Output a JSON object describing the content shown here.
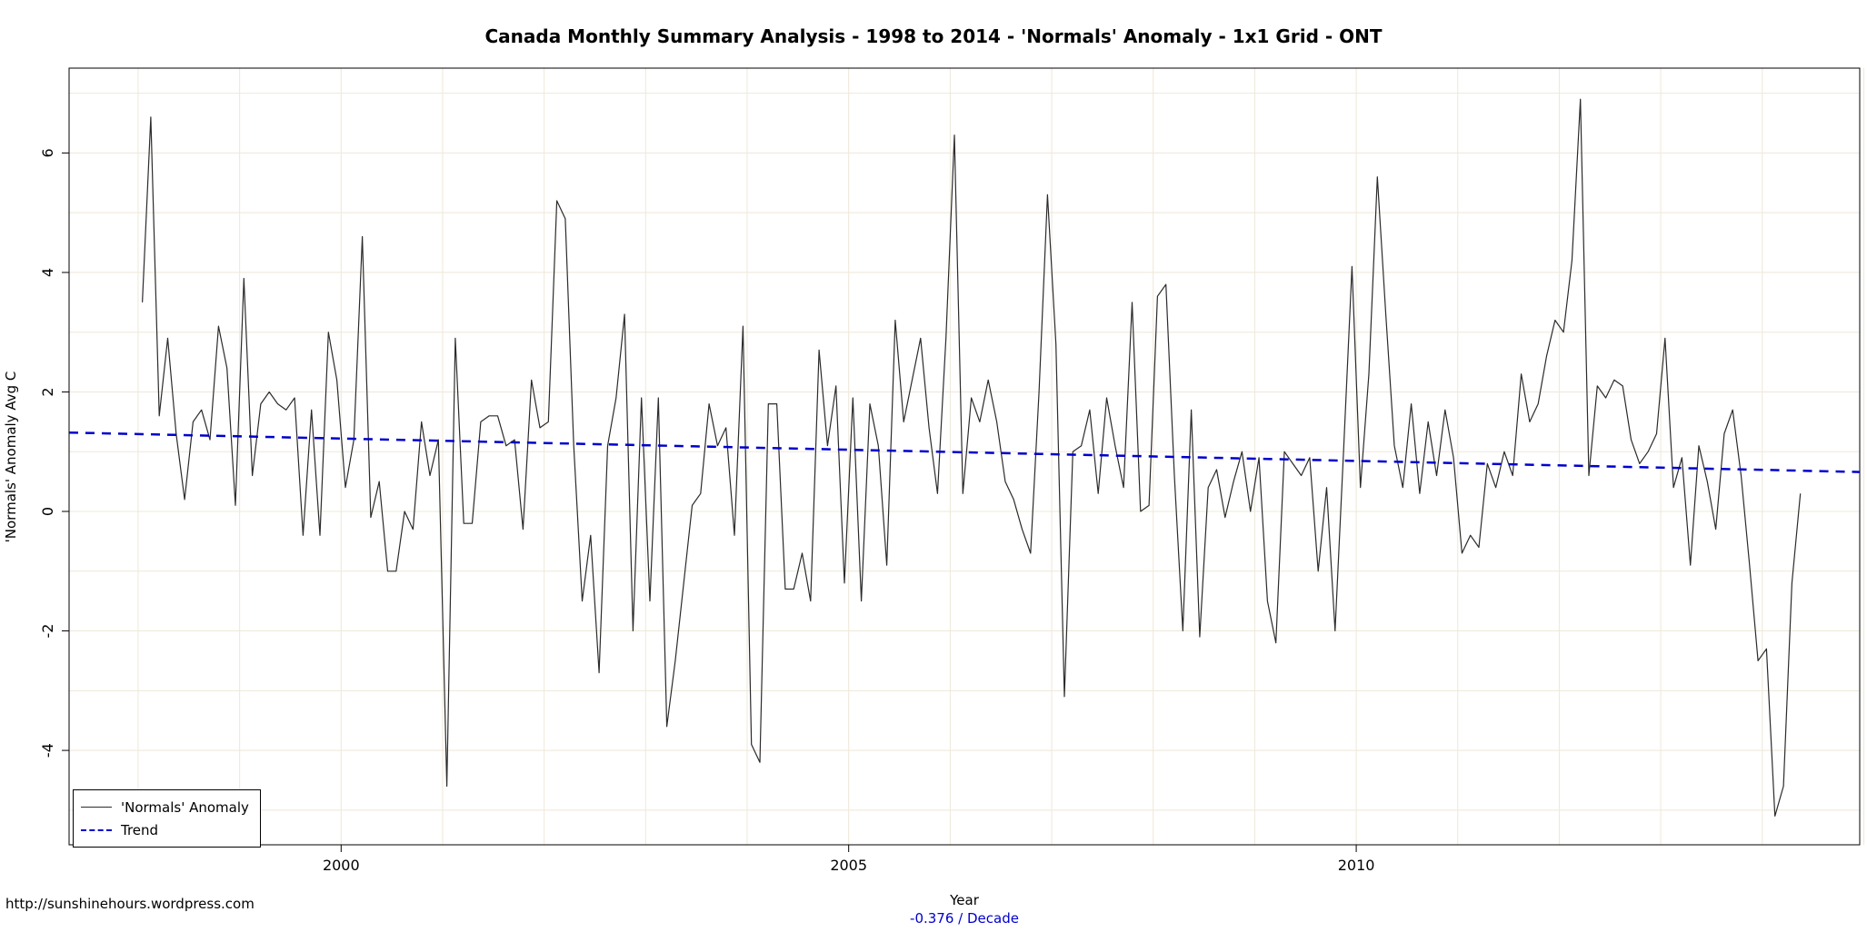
{
  "title": "Canada Monthly Summary Analysis - 1998 to 2014 - 'Normals' Anomaly - 1x1 Grid - ONT",
  "footer": {
    "url": "http://sunshinehours.wordpress.com",
    "xlabel": "Year",
    "trend_note": "-0.376  / Decade"
  },
  "chart_data": {
    "type": "line",
    "title": "Canada Monthly Summary Analysis - 1998 to 2014 - 'Normals' Anomaly - 1x1 Grid - ONT",
    "xlabel": "Year",
    "ylabel": "'Normals' Anomaly Avg C",
    "x_ticks": [
      2000,
      2005,
      2010
    ],
    "y_ticks": [
      -4,
      -2,
      0,
      2,
      4,
      6
    ],
    "xlim": [
      1997.32,
      2014.96
    ],
    "ylim": [
      -5.58,
      7.42
    ],
    "grid": {
      "x_from": 1998,
      "x_to": 2015,
      "y_from": -5,
      "y_to": 7
    },
    "legend": {
      "position": "bottom-left",
      "items": [
        {
          "label": "'Normals' Anomaly"
        },
        {
          "label": "Trend"
        }
      ]
    },
    "trend_slope_per_decade": -0.376,
    "colors": {
      "series": "#2b2b2b",
      "trend": "#0000cd",
      "grid": "#efe8d8",
      "box": "#000000"
    },
    "series": [
      {
        "name": "'Normals' Anomaly",
        "style": "solid",
        "start_year": 1998,
        "frequency": "monthly",
        "values": [
          3.5,
          6.6,
          1.6,
          2.9,
          1.3,
          0.2,
          1.5,
          1.7,
          1.2,
          3.1,
          2.4,
          0.1,
          3.9,
          0.6,
          1.8,
          2.0,
          1.8,
          1.7,
          1.9,
          -0.4,
          1.7,
          -0.4,
          3.0,
          2.2,
          0.4,
          1.2,
          4.6,
          -0.1,
          0.5,
          -1.0,
          -1.0,
          0.0,
          -0.3,
          1.5,
          0.6,
          1.2,
          -4.6,
          2.9,
          -0.2,
          -0.2,
          1.5,
          1.6,
          1.6,
          1.1,
          1.2,
          -0.3,
          2.2,
          1.4,
          1.5,
          5.2,
          4.9,
          1.1,
          -1.5,
          -0.4,
          -2.7,
          1.1,
          1.9,
          3.3,
          -2.0,
          1.9,
          -1.5,
          1.9,
          -3.6,
          -2.5,
          -1.2,
          0.1,
          0.3,
          1.8,
          1.1,
          1.4,
          -0.4,
          3.1,
          -3.9,
          -4.2,
          1.8,
          1.8,
          -1.3,
          -1.3,
          -0.7,
          -1.5,
          2.7,
          1.1,
          2.1,
          -1.2,
          1.9,
          -1.5,
          1.8,
          1.1,
          -0.9,
          3.2,
          1.5,
          2.2,
          2.9,
          1.4,
          0.3,
          2.9,
          6.3,
          0.3,
          1.9,
          1.5,
          2.2,
          1.5,
          0.5,
          0.2,
          -0.3,
          -0.7,
          2.0,
          5.3,
          2.8,
          -3.1,
          1.0,
          1.1,
          1.7,
          0.3,
          1.9,
          1.1,
          0.4,
          3.5,
          0.0,
          0.1,
          3.6,
          3.8,
          0.6,
          -2.0,
          1.7,
          -2.1,
          0.4,
          0.7,
          -0.1,
          0.5,
          1.0,
          0.0,
          0.9,
          -1.5,
          -2.2,
          1.0,
          0.8,
          0.6,
          0.9,
          -1.0,
          0.4,
          -2.0,
          1.0,
          4.1,
          0.4,
          2.3,
          5.6,
          3.3,
          1.1,
          0.4,
          1.8,
          0.3,
          1.5,
          0.6,
          1.7,
          0.9,
          -0.7,
          -0.4,
          -0.6,
          0.8,
          0.4,
          1.0,
          0.6,
          2.3,
          1.5,
          1.8,
          2.6,
          3.2,
          3.0,
          4.2,
          6.9,
          0.6,
          2.1,
          1.9,
          2.2,
          2.1,
          1.2,
          0.8,
          1.0,
          1.3,
          2.9,
          0.4,
          0.9,
          -0.9,
          1.1,
          0.5,
          -0.3,
          1.3,
          1.7,
          0.6,
          -0.9,
          -2.5,
          -2.3,
          -5.1,
          -4.6,
          -1.2,
          0.3
        ]
      },
      {
        "name": "Trend",
        "style": "dashed",
        "x": [
          1997.32,
          2014.96
        ],
        "y": [
          1.32,
          0.66
        ]
      }
    ]
  }
}
